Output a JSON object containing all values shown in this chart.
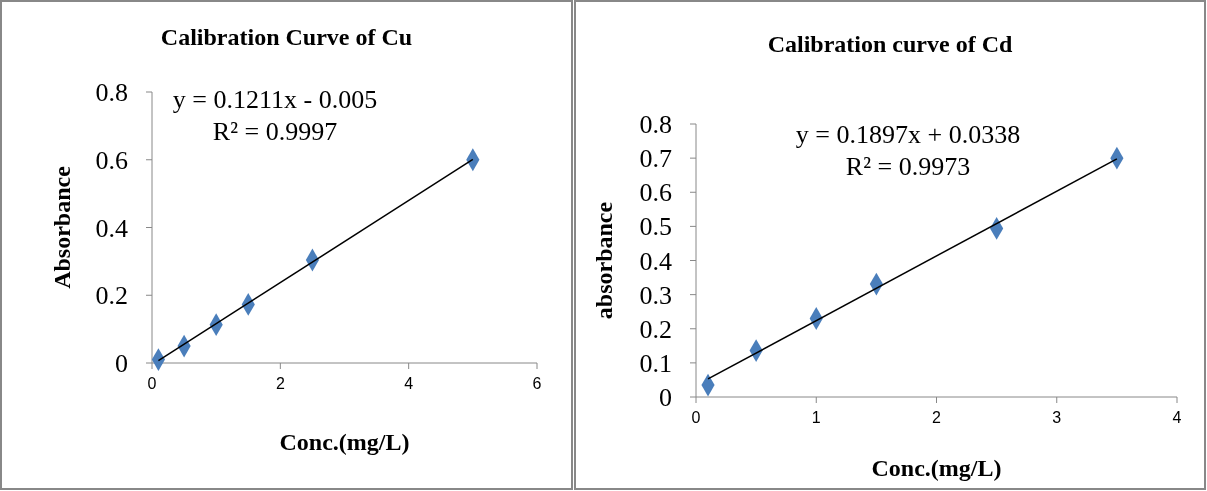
{
  "chart_data": [
    {
      "type": "scatter",
      "title": "Calibration Curve of Cu",
      "xlabel": "Conc.(mg/L)",
      "ylabel": "Absorbance",
      "xlim": [
        0,
        6
      ],
      "xticks": [
        0,
        2,
        4,
        6
      ],
      "ylim": [
        0,
        0.8
      ],
      "yticks": [
        0,
        0.2,
        0.4,
        0.6,
        0.8
      ],
      "annotations": [
        "y = 0.1211x - 0.005",
        "R² = 0.9997"
      ],
      "series": [
        {
          "marker": "diamond",
          "color": "#4a7ebb",
          "x": [
            0.1,
            0.5,
            1,
            1.5,
            2.5,
            5
          ],
          "values": [
            0.01,
            0.05,
            0.113,
            0.173,
            0.304,
            0.6
          ]
        },
        {
          "type": "line",
          "color": "#000000",
          "x": [
            0.1,
            5
          ],
          "values": [
            0.007,
            0.601
          ]
        }
      ]
    },
    {
      "type": "scatter",
      "title": "Calibration curve of Cd",
      "xlabel": "Conc.(mg/L)",
      "ylabel": "absorbance",
      "xlim": [
        0,
        4
      ],
      "xticks": [
        0,
        1,
        2,
        3,
        4
      ],
      "ylim": [
        0,
        0.8
      ],
      "yticks": [
        0,
        0.1,
        0.2,
        0.3,
        0.4,
        0.5,
        0.6,
        0.7,
        0.8
      ],
      "annotations": [
        "y = 0.1897x + 0.0338",
        "R² = 0.9973"
      ],
      "series": [
        {
          "marker": "diamond",
          "color": "#4a7ebb",
          "x": [
            0.1,
            0.5,
            1,
            1.5,
            2.5,
            3.5
          ],
          "values": [
            0.035,
            0.136,
            0.23,
            0.331,
            0.494,
            0.7
          ]
        },
        {
          "type": "line",
          "color": "#000000",
          "x": [
            0.1,
            3.5
          ],
          "values": [
            0.053,
            0.698
          ]
        }
      ]
    }
  ]
}
